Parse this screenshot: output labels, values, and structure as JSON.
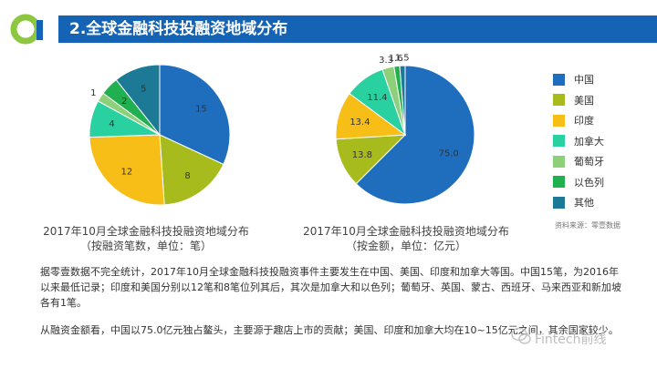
{
  "header": {
    "title": "2.全球金融科技投融资地域分布"
  },
  "chart_data": [
    {
      "type": "pie",
      "title": "2017年10月全球金融科技投融资地域分布",
      "subtitle": "（按融资笔数，单位：笔）",
      "categories": [
        "中国",
        "美国",
        "印度",
        "加拿大",
        "葡萄牙",
        "以色列",
        "其他"
      ],
      "values": [
        15,
        8,
        12,
        4,
        1,
        2,
        5
      ]
    },
    {
      "type": "pie",
      "title": "2017年10月全球金融科技投融资地域分布",
      "subtitle": "（按金额，单位：亿元）",
      "categories": [
        "中国",
        "美国",
        "印度",
        "加拿大",
        "葡萄牙",
        "以色列",
        "其他"
      ],
      "values": [
        75.0,
        13.8,
        13.4,
        11.4,
        3.3,
        1.6,
        1.5
      ],
      "labels": [
        "75.0",
        "13.8",
        "13.4",
        "11.4",
        "3.3",
        "1.6",
        "1.5"
      ]
    }
  ],
  "colors": [
    "#1f6ebd",
    "#a7bb1d",
    "#f7be17",
    "#29d0a0",
    "#8cd07a",
    "#21b04f",
    "#1d7a96"
  ],
  "legend": [
    "中国",
    "美国",
    "印度",
    "加拿大",
    "葡萄牙",
    "以色列",
    "其他"
  ],
  "source": "资料来源：零壹数据",
  "paragraphs": {
    "p1": "据零壹数据不完全统计，2017年10月全球金融科技投融资事件主要发生在中国、美国、印度和加拿大等国。中国15笔，为2016年以来最低记录；印度和美国分别以12笔和8笔位列其后，其次是加拿大和以色列；葡萄牙、英国、蒙古、西班牙、马来西亚和新加坡各有1笔。",
    "p2": "从融资金额看，中国以75.0亿元独占鳌头，主要源于趣店上市的贡献；美国、印度和加拿大均在10~15亿元之间，其余国家较少。"
  },
  "watermark": "Fintech前线"
}
